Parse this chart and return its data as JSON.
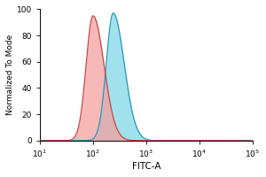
{
  "title": "",
  "xlabel": "FITC-A",
  "ylabel": "Normalized To Mode",
  "xlim": [
    10,
    100000
  ],
  "ylim": [
    0,
    100
  ],
  "yticks": [
    0,
    20,
    40,
    60,
    80,
    100
  ],
  "red_peak_log10": 2.0,
  "red_sigma_log10": 0.13,
  "red_peak_height": 95,
  "blue_peak_log10": 2.38,
  "blue_sigma_log10": 0.13,
  "blue_peak_height": 97,
  "red_fill_color": "#F5A0A0",
  "blue_fill_color": "#80D8E8",
  "red_edge_color": "#CC4444",
  "blue_edge_color": "#2299BB",
  "bg_color": "#FFFFFF",
  "alpha_red": 0.75,
  "alpha_blue": 0.75,
  "ylabel_fontsize": 6.5,
  "xlabel_fontsize": 7.5,
  "tick_fontsize": 6.5,
  "linewidth": 0.9,
  "figsize": [
    3.0,
    2.0
  ],
  "dpi": 100
}
